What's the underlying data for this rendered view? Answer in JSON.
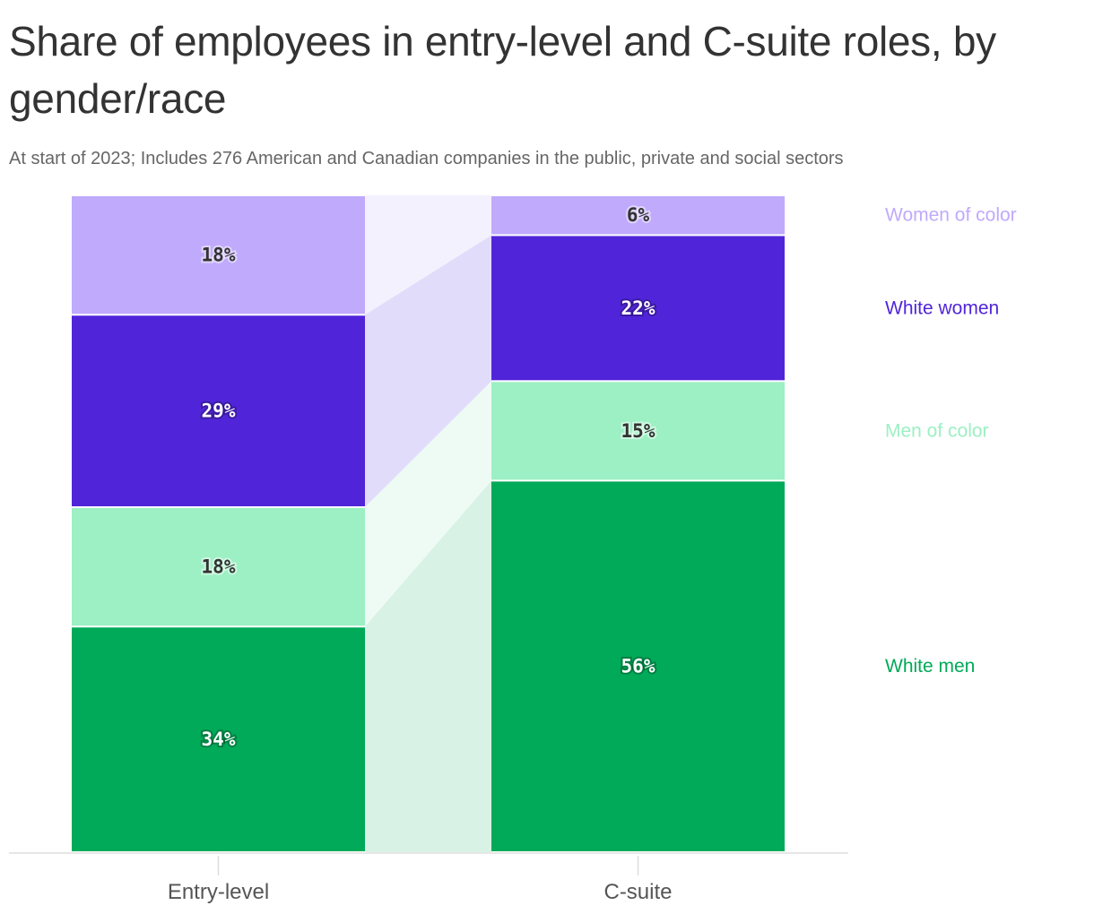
{
  "title": "Share of employees in entry-level and C-suite roles, by gender/race",
  "subtitle": "At start of 2023; Includes 276 American and Canadian companies in the public, private and social sectors",
  "chart_data": {
    "type": "bar",
    "stacked": true,
    "categories": [
      "Entry-level",
      "C-suite"
    ],
    "series": [
      {
        "name": "White men",
        "values": [
          34,
          56
        ],
        "color": "#00aa58",
        "band_color": "#d8f2e5",
        "label_color": "#ffffff"
      },
      {
        "name": "Men of color",
        "values": [
          18,
          15
        ],
        "color": "#9cf0c3",
        "band_color": "#eefbf4",
        "label_color": "#333333"
      },
      {
        "name": "White women",
        "values": [
          29,
          22
        ],
        "color": "#5025d9",
        "band_color": "#e2dcfb",
        "label_color": "#ffffff"
      },
      {
        "name": "Women of color",
        "values": [
          18,
          6
        ],
        "color": "#c0aafc",
        "band_color": "#f4f1fe",
        "label_color": "#333333"
      }
    ],
    "value_suffix": "%",
    "legend_placement": "right",
    "grid": false
  }
}
